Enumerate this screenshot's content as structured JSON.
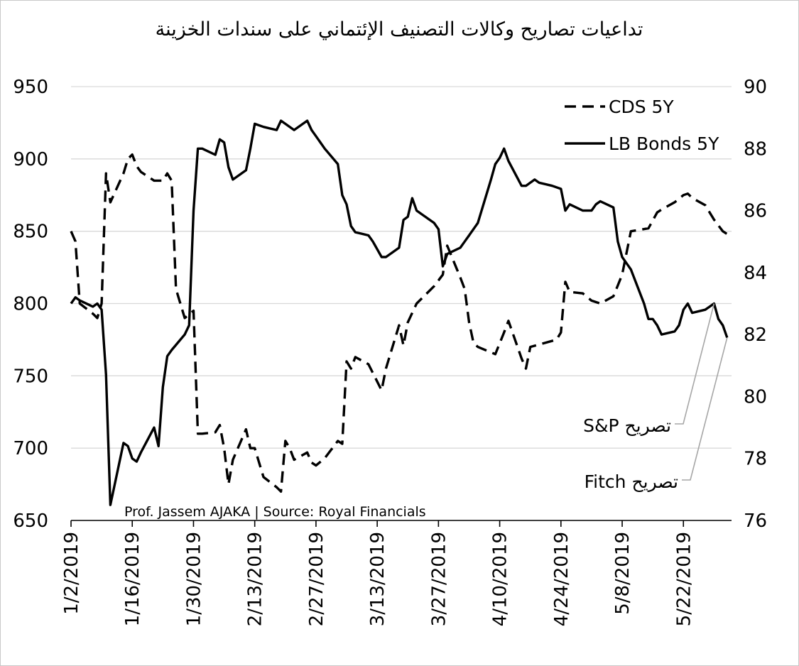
{
  "chart_data": {
    "type": "line",
    "title": "تداعيات تصاريح وكالات التصنيف الإئتماني على سندات الخزينة",
    "source": "Prof. Jassem AJAKA | Source: Royal Financials",
    "x_ticks": [
      "1/2/2019",
      "1/16/2019",
      "1/30/2019",
      "2/13/2019",
      "2/27/2019",
      "3/13/2019",
      "3/27/2019",
      "4/10/2019",
      "4/24/2019",
      "5/8/2019",
      "5/22/2019"
    ],
    "x_range": [
      "1/2/2019",
      "6/2/2019"
    ],
    "y_left": {
      "min": 650,
      "max": 950,
      "ticks": [
        650,
        700,
        750,
        800,
        850,
        900,
        950
      ]
    },
    "y_right": {
      "min": 76,
      "max": 90,
      "ticks": [
        76,
        78,
        80,
        82,
        84,
        86,
        88,
        90
      ]
    },
    "grid": true,
    "legend_position": "top-right",
    "series": [
      {
        "name": "CDS 5Y",
        "axis": "left",
        "style": "dashed",
        "color": "#000000",
        "points": [
          [
            "2019-01-02",
            850
          ],
          [
            "2019-01-03",
            843
          ],
          [
            "2019-01-04",
            800
          ],
          [
            "2019-01-07",
            793
          ],
          [
            "2019-01-08",
            790
          ],
          [
            "2019-01-09",
            800
          ],
          [
            "2019-01-10",
            890
          ],
          [
            "2019-01-11",
            870
          ],
          [
            "2019-01-14",
            890
          ],
          [
            "2019-01-15",
            900
          ],
          [
            "2019-01-16",
            903
          ],
          [
            "2019-01-17",
            895
          ],
          [
            "2019-01-18",
            891
          ],
          [
            "2019-01-21",
            885
          ],
          [
            "2019-01-23",
            885
          ],
          [
            "2019-01-24",
            890
          ],
          [
            "2019-01-25",
            885
          ],
          [
            "2019-01-26",
            810
          ],
          [
            "2019-01-28",
            790
          ],
          [
            "2019-01-30",
            795
          ],
          [
            "2019-01-31",
            710
          ],
          [
            "2019-02-01",
            710
          ],
          [
            "2019-02-04",
            711
          ],
          [
            "2019-02-05",
            716
          ],
          [
            "2019-02-06",
            700
          ],
          [
            "2019-02-07",
            675
          ],
          [
            "2019-02-08",
            692
          ],
          [
            "2019-02-11",
            713
          ],
          [
            "2019-02-12",
            700
          ],
          [
            "2019-02-13",
            700
          ],
          [
            "2019-02-14",
            690
          ],
          [
            "2019-02-15",
            680
          ],
          [
            "2019-02-18",
            673
          ],
          [
            "2019-02-19",
            670
          ],
          [
            "2019-02-20",
            705
          ],
          [
            "2019-02-21",
            700
          ],
          [
            "2019-02-22",
            692
          ],
          [
            "2019-02-25",
            697
          ],
          [
            "2019-02-26",
            690
          ],
          [
            "2019-02-27",
            688
          ],
          [
            "2019-03-01",
            693
          ],
          [
            "2019-03-04",
            705
          ],
          [
            "2019-03-05",
            703
          ],
          [
            "2019-03-06",
            760
          ],
          [
            "2019-03-07",
            755
          ],
          [
            "2019-03-08",
            763
          ],
          [
            "2019-03-11",
            758
          ],
          [
            "2019-03-12",
            752
          ],
          [
            "2019-03-14",
            740
          ],
          [
            "2019-03-15",
            755
          ],
          [
            "2019-03-18",
            785
          ],
          [
            "2019-03-19",
            771
          ],
          [
            "2019-03-20",
            787
          ],
          [
            "2019-03-22",
            800
          ],
          [
            "2019-03-26",
            812
          ],
          [
            "2019-03-28",
            820
          ],
          [
            "2019-03-29",
            840
          ],
          [
            "2019-04-01",
            818
          ],
          [
            "2019-04-02",
            810
          ],
          [
            "2019-04-03",
            787
          ],
          [
            "2019-04-04",
            773
          ],
          [
            "2019-04-05",
            770
          ],
          [
            "2019-04-09",
            765
          ],
          [
            "2019-04-11",
            780
          ],
          [
            "2019-04-12",
            788
          ],
          [
            "2019-04-15",
            762
          ],
          [
            "2019-04-16",
            755
          ],
          [
            "2019-04-17",
            770
          ],
          [
            "2019-04-23",
            775
          ],
          [
            "2019-04-24",
            780
          ],
          [
            "2019-04-25",
            815
          ],
          [
            "2019-04-26",
            808
          ],
          [
            "2019-04-29",
            807
          ],
          [
            "2019-05-01",
            802
          ],
          [
            "2019-05-03",
            800
          ],
          [
            "2019-05-06",
            805
          ],
          [
            "2019-05-08",
            820
          ],
          [
            "2019-05-10",
            850
          ],
          [
            "2019-05-14",
            852
          ],
          [
            "2019-05-16",
            863
          ],
          [
            "2019-05-17",
            865
          ],
          [
            "2019-05-20",
            870
          ],
          [
            "2019-05-22",
            875
          ],
          [
            "2019-05-23",
            876
          ],
          [
            "2019-05-24",
            873
          ],
          [
            "2019-05-27",
            868
          ],
          [
            "2019-05-28",
            863
          ],
          [
            "2019-05-29",
            858
          ],
          [
            "2019-05-31",
            850
          ],
          [
            "2019-06-01",
            848
          ]
        ]
      },
      {
        "name": "LB Bonds 5Y",
        "axis": "right",
        "style": "solid",
        "color": "#000000",
        "points": [
          [
            "2019-01-02",
            83.0
          ],
          [
            "2019-01-03",
            83.2
          ],
          [
            "2019-01-04",
            83.1
          ],
          [
            "2019-01-07",
            82.9
          ],
          [
            "2019-01-08",
            83.0
          ],
          [
            "2019-01-09",
            82.8
          ],
          [
            "2019-01-10",
            80.7
          ],
          [
            "2019-01-11",
            76.5
          ],
          [
            "2019-01-14",
            78.5
          ],
          [
            "2019-01-15",
            78.4
          ],
          [
            "2019-01-16",
            78.0
          ],
          [
            "2019-01-17",
            77.9
          ],
          [
            "2019-01-18",
            78.2
          ],
          [
            "2019-01-21",
            79.0
          ],
          [
            "2019-01-22",
            78.4
          ],
          [
            "2019-01-23",
            80.3
          ],
          [
            "2019-01-24",
            81.3
          ],
          [
            "2019-01-25",
            81.5
          ],
          [
            "2019-01-28",
            82.0
          ],
          [
            "2019-01-29",
            82.3
          ],
          [
            "2019-01-30",
            86.0
          ],
          [
            "2019-01-31",
            88.0
          ],
          [
            "2019-02-01",
            88.0
          ],
          [
            "2019-02-04",
            87.8
          ],
          [
            "2019-02-05",
            88.3
          ],
          [
            "2019-02-06",
            88.2
          ],
          [
            "2019-02-07",
            87.4
          ],
          [
            "2019-02-08",
            87.0
          ],
          [
            "2019-02-11",
            87.3
          ],
          [
            "2019-02-12",
            88.0
          ],
          [
            "2019-02-13",
            88.8
          ],
          [
            "2019-02-15",
            88.7
          ],
          [
            "2019-02-18",
            88.6
          ],
          [
            "2019-02-19",
            88.9
          ],
          [
            "2019-02-20",
            88.8
          ],
          [
            "2019-02-22",
            88.6
          ],
          [
            "2019-02-25",
            88.9
          ],
          [
            "2019-02-26",
            88.6
          ],
          [
            "2019-02-27",
            88.4
          ],
          [
            "2019-02-28",
            88.2
          ],
          [
            "2019-03-01",
            88.0
          ],
          [
            "2019-03-04",
            87.5
          ],
          [
            "2019-03-05",
            86.5
          ],
          [
            "2019-03-06",
            86.2
          ],
          [
            "2019-03-07",
            85.5
          ],
          [
            "2019-03-08",
            85.3
          ],
          [
            "2019-03-11",
            85.2
          ],
          [
            "2019-03-12",
            85.0
          ],
          [
            "2019-03-14",
            84.5
          ],
          [
            "2019-03-15",
            84.5
          ],
          [
            "2019-03-18",
            84.8
          ],
          [
            "2019-03-19",
            85.7
          ],
          [
            "2019-03-20",
            85.8
          ],
          [
            "2019-03-21",
            86.4
          ],
          [
            "2019-03-22",
            86.0
          ],
          [
            "2019-03-26",
            85.6
          ],
          [
            "2019-03-27",
            85.4
          ],
          [
            "2019-03-28",
            84.2
          ],
          [
            "2019-03-29",
            84.6
          ],
          [
            "2019-04-01",
            84.8
          ],
          [
            "2019-04-02",
            85.0
          ],
          [
            "2019-04-03",
            85.2
          ],
          [
            "2019-04-04",
            85.4
          ],
          [
            "2019-04-05",
            85.6
          ],
          [
            "2019-04-08",
            87.0
          ],
          [
            "2019-04-09",
            87.5
          ],
          [
            "2019-04-10",
            87.7
          ],
          [
            "2019-04-11",
            88.0
          ],
          [
            "2019-04-12",
            87.6
          ],
          [
            "2019-04-15",
            86.8
          ],
          [
            "2019-04-16",
            86.8
          ],
          [
            "2019-04-17",
            86.9
          ],
          [
            "2019-04-18",
            87.0
          ],
          [
            "2019-04-19",
            86.9
          ],
          [
            "2019-04-22",
            86.8
          ],
          [
            "2019-04-24",
            86.7
          ],
          [
            "2019-04-25",
            86.0
          ],
          [
            "2019-04-26",
            86.2
          ],
          [
            "2019-04-29",
            86.0
          ],
          [
            "2019-05-01",
            86.0
          ],
          [
            "2019-05-02",
            86.2
          ],
          [
            "2019-05-03",
            86.3
          ],
          [
            "2019-05-06",
            86.1
          ],
          [
            "2019-05-07",
            85.0
          ],
          [
            "2019-05-08",
            84.5
          ],
          [
            "2019-05-09",
            84.3
          ],
          [
            "2019-05-10",
            84.1
          ],
          [
            "2019-05-13",
            83.0
          ],
          [
            "2019-05-14",
            82.5
          ],
          [
            "2019-05-15",
            82.5
          ],
          [
            "2019-05-16",
            82.3
          ],
          [
            "2019-05-17",
            82.0
          ],
          [
            "2019-05-20",
            82.1
          ],
          [
            "2019-05-21",
            82.3
          ],
          [
            "2019-05-22",
            82.8
          ],
          [
            "2019-05-23",
            83.0
          ],
          [
            "2019-05-24",
            82.7
          ],
          [
            "2019-05-27",
            82.8
          ],
          [
            "2019-05-28",
            82.9
          ],
          [
            "2019-05-29",
            83.0
          ],
          [
            "2019-05-30",
            82.5
          ],
          [
            "2019-05-31",
            82.3
          ],
          [
            "2019-06-01",
            81.9
          ]
        ]
      }
    ],
    "annotations": [
      {
        "label": "S&P تصريح",
        "target_date": "2019-05-29",
        "target_axis": "right",
        "target_value": 83.0
      },
      {
        "label": "Fitch تصريح",
        "target_date": "2019-06-01",
        "target_axis": "right",
        "target_value": 81.9
      }
    ]
  }
}
